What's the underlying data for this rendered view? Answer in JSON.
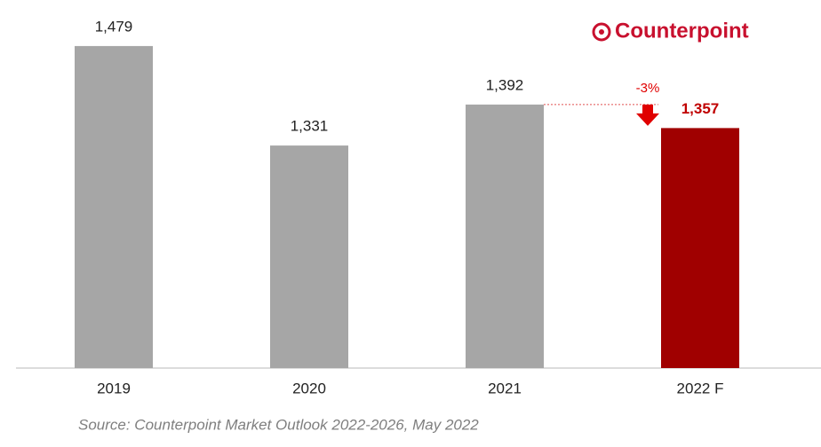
{
  "chart_data": {
    "type": "bar",
    "logo": "Counterpoint",
    "categories": [
      "2019",
      "2020",
      "2021",
      "2022 F"
    ],
    "values": [
      1479,
      1331,
      1392,
      1357
    ],
    "value_labels": [
      "1,479",
      "1,331",
      "1,392",
      "1,357"
    ],
    "colors": [
      "#a6a6a6",
      "#a6a6a6",
      "#a6a6a6",
      "#a00000"
    ],
    "ylim": [
      1000,
      1500
    ],
    "annotation": "-3%",
    "source": "Source: Counterpoint Market Outlook 2022-2026, May 2022"
  }
}
